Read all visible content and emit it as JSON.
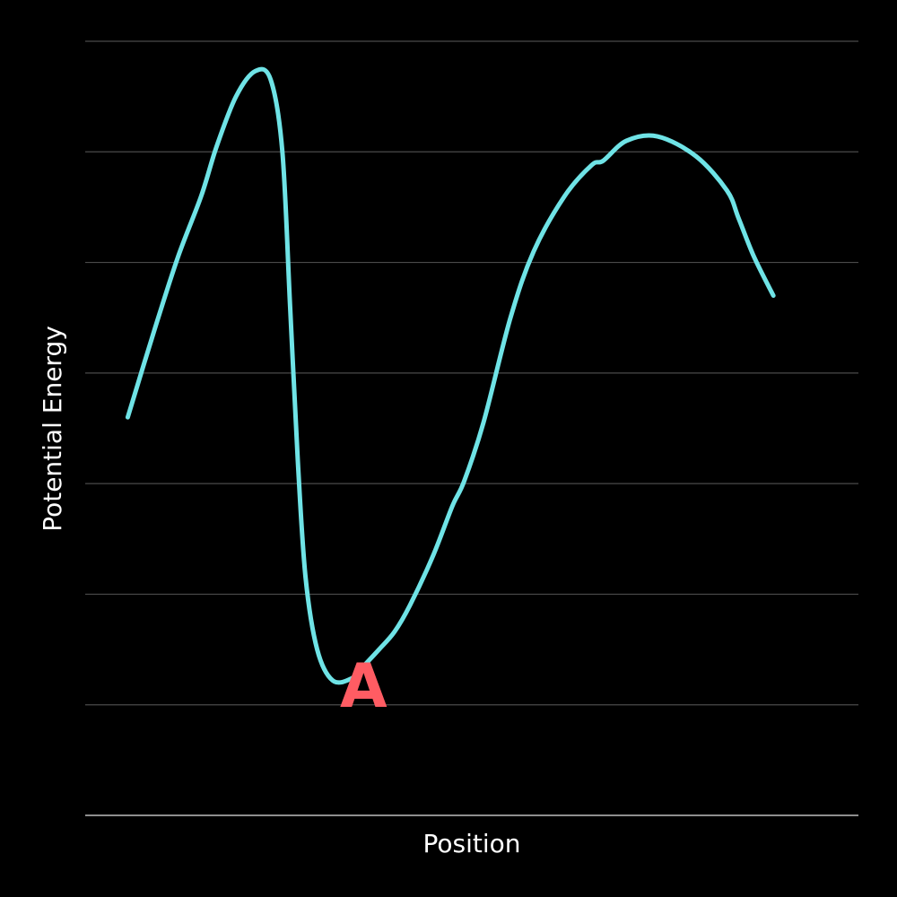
{
  "chart_data": {
    "type": "line",
    "title": "",
    "xlabel": "Position",
    "ylabel": "Potential Energy",
    "xlim": [
      0,
      1
    ],
    "ylim": [
      0,
      7
    ],
    "grid": true,
    "gridlines_y": [
      1,
      2,
      3,
      4,
      5,
      6,
      7
    ],
    "series": [
      {
        "color": "#6fe3e6",
        "x": [
          0.055,
          0.09,
          0.12,
          0.15,
          0.17,
          0.195,
          0.22,
          0.24,
          0.255,
          0.265,
          0.275,
          0.285,
          0.3,
          0.32,
          0.345,
          0.36,
          0.38,
          0.4,
          0.42,
          0.45,
          0.475,
          0.49,
          0.515,
          0.55,
          0.58,
          0.62,
          0.655,
          0.67,
          0.7,
          0.74,
          0.79,
          0.83,
          0.845,
          0.865,
          0.89
        ],
        "y": [
          3.6,
          4.4,
          5.05,
          5.6,
          6.05,
          6.5,
          6.73,
          6.65,
          6.0,
          4.6,
          3.2,
          2.15,
          1.5,
          1.22,
          1.24,
          1.35,
          1.5,
          1.66,
          1.9,
          2.35,
          2.8,
          3.02,
          3.55,
          4.5,
          5.1,
          5.6,
          5.88,
          5.92,
          6.1,
          6.14,
          5.96,
          5.65,
          5.4,
          5.05,
          4.7
        ]
      }
    ],
    "annotations": [
      {
        "text": "A",
        "color": "#ff5c63",
        "x": 0.36,
        "y": 0.98
      }
    ]
  }
}
